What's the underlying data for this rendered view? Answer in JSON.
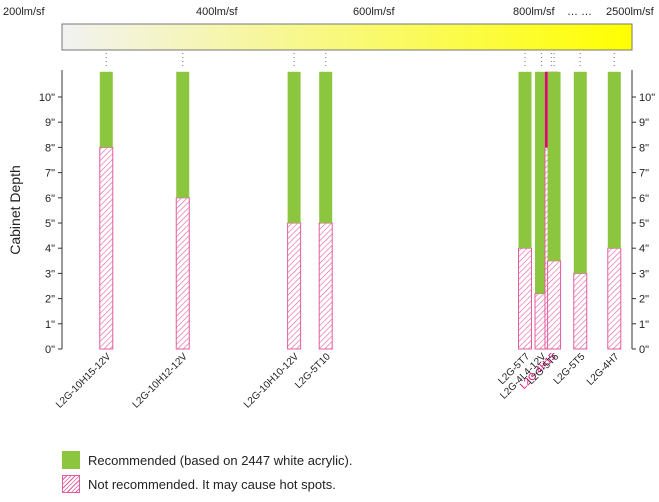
{
  "lumen_scale": {
    "labels": [
      "200lm/sf",
      "400lm/sf",
      "600lm/sf",
      "800lm/sf",
      "… …",
      "2500lm/sf"
    ],
    "gradient": {
      "start": "#f2f2f2",
      "end": "#ffff00"
    }
  },
  "chart_data": {
    "type": "bar",
    "ylabel": "Cabinet Depth",
    "ylim": [
      0,
      11
    ],
    "y_ticks": [
      "0\"",
      "1\"",
      "2\"",
      "3\"",
      "4\"",
      "5\"",
      "6\"",
      "7\"",
      "8\"",
      "9\"",
      "10\""
    ],
    "grid": false,
    "categories": [
      "L2G-10H15-12V",
      "L2G-10H12-12V",
      "L2G-10H10-12V",
      "L2G-5T10",
      "L2G-5T7",
      "L2G-4L4-12V",
      "L2G-4H15",
      "L2G-5T6",
      "L2G-5T5",
      "L2G-4H7"
    ],
    "lumens_per_sf": [
      255,
      350,
      490,
      530,
      780,
      810,
      1000,
      1050,
      1550,
      2200
    ],
    "series": [
      {
        "name": "Not recommended",
        "values": [
          8,
          6,
          5,
          5,
          4,
          2.2,
          8,
          3.5,
          3,
          4
        ]
      },
      {
        "name": "Recommended",
        "values": [
          3,
          5,
          6,
          6,
          7,
          8.8,
          3,
          7.5,
          8,
          7
        ]
      }
    ],
    "highlight": "L2G-4H15",
    "colors": {
      "recommended": "#8cc63f",
      "highlight": "#e6007e",
      "hatch": "#e35d9f"
    }
  },
  "legend": {
    "recommended": "Recommended (based on 2447 white acrylic).",
    "not_recommended": "Not recommended. It may cause hot spots."
  }
}
